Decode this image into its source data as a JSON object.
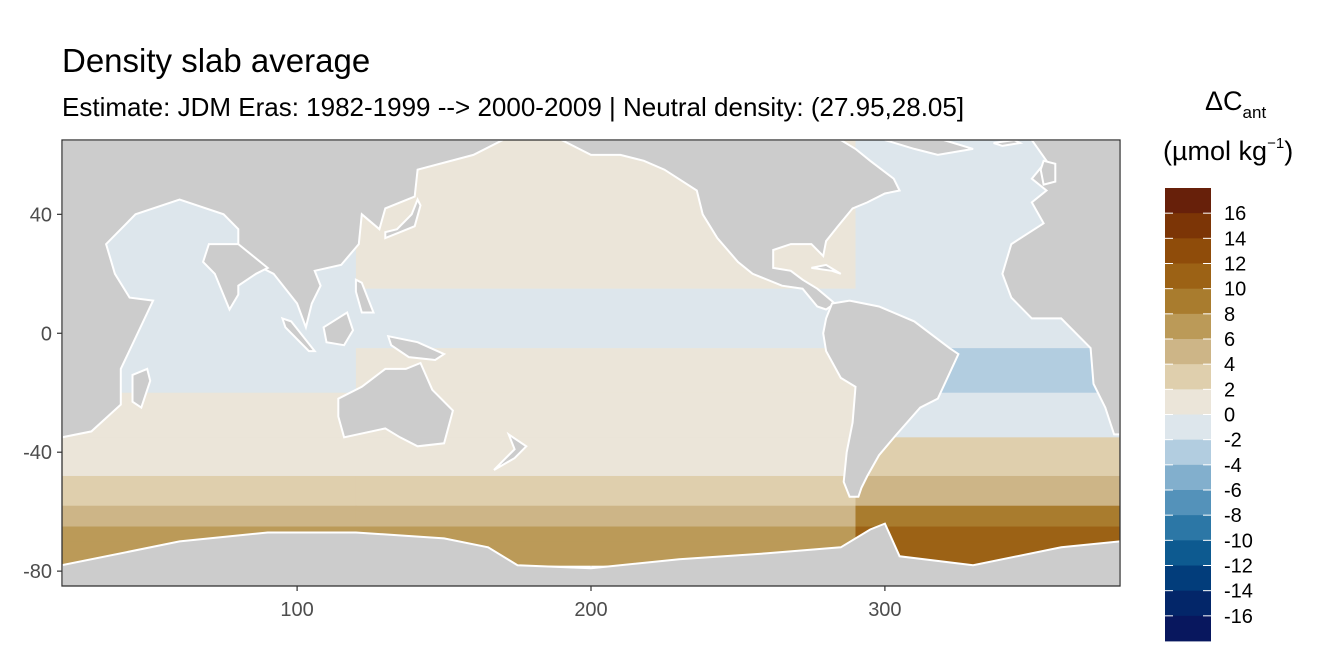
{
  "chart_data": {
    "type": "heatmap",
    "title": "Density slab average",
    "subtitle": "Estimate: JDM Eras: 1982-1999 --> 2000-2009 | Neutral density: (27.95,28.05]",
    "xlabel": "",
    "ylabel": "",
    "xlim": [
      20,
      380
    ],
    "ylim": [
      -85,
      65
    ],
    "x_ticks": [
      100,
      200,
      300
    ],
    "y_ticks": [
      40,
      0,
      -40,
      -80
    ],
    "legend": {
      "title_main": "ΔC",
      "title_subscript": "ant",
      "unit_prefix": "(µmol kg",
      "unit_superscript": "−1",
      "unit_suffix": ")",
      "placement": "right",
      "labels": [
        "16",
        "14",
        "12",
        "10",
        "8",
        "6",
        "4",
        "2",
        "0",
        "-2",
        "-4",
        "-6",
        "-8",
        "-10",
        "-12",
        "-14",
        "-16"
      ],
      "colors": [
        "#67200a",
        "#7c3506",
        "#8f4c0a",
        "#9c6215",
        "#a97c2e",
        "#bb9a58",
        "#cdb587",
        "#dfcfad",
        "#ebe5d9",
        "#dde6ec",
        "#b2cde0",
        "#82afcd",
        "#5492ba",
        "#2c77a6",
        "#0d5a90",
        "#023d7b",
        "#032669",
        "#08175e"
      ]
    },
    "background": {
      "land": "#cccccc",
      "missing_ocean": "#ffffff"
    },
    "zonal_bands": [
      {
        "lat_from": 65,
        "lat_to": 45,
        "pacific": 1,
        "atlantic": -1,
        "indian": 0
      },
      {
        "lat_from": 45,
        "lat_to": 15,
        "pacific": 1,
        "atlantic": -1,
        "indian": -1
      },
      {
        "lat_from": 15,
        "lat_to": -5,
        "pacific": -1,
        "atlantic": -1,
        "indian": -1
      },
      {
        "lat_from": -5,
        "lat_to": -20,
        "pacific": 1,
        "atlantic": -3,
        "indian": -1
      },
      {
        "lat_from": -20,
        "lat_to": -35,
        "pacific": 1,
        "atlantic": -1,
        "indian": 1
      },
      {
        "lat_from": -35,
        "lat_to": -48,
        "pacific": 1,
        "atlantic": 3,
        "indian": 1
      },
      {
        "lat_from": -48,
        "lat_to": -58,
        "pacific": 3,
        "atlantic": 5,
        "indian": 3
      },
      {
        "lat_from": -58,
        "lat_to": -65,
        "pacific": 5,
        "atlantic": 9,
        "indian": 5
      },
      {
        "lat_from": -65,
        "lat_to": -70,
        "pacific": 7,
        "atlantic": 11,
        "indian": 7
      },
      {
        "lat_from": -70,
        "lat_to": -78,
        "pacific": 7,
        "atlantic": 11,
        "indian": 7
      }
    ],
    "grid": true
  }
}
